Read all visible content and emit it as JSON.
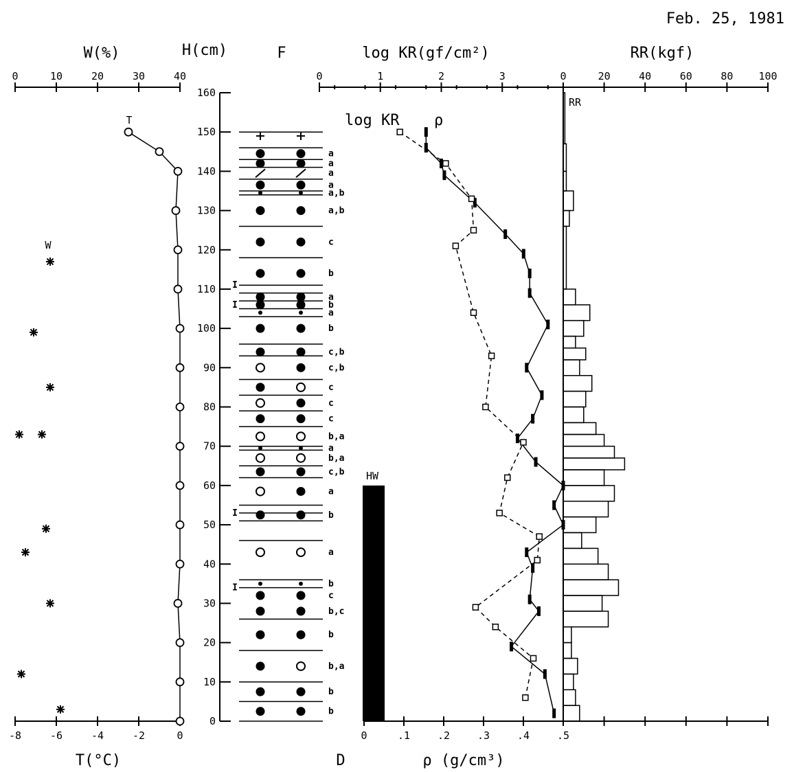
{
  "date": "Feb. 25, 1981",
  "labels": {
    "w_axis": "W(%)",
    "h_axis": "H(cm)",
    "f_column": "F",
    "kr_axis": "log KR(gf/cm²)",
    "rr_axis": "RR(kgf)",
    "t_axis": "T(°C)",
    "d_axis": "D",
    "rho_axis": "ρ (g/cm³)",
    "hw_label": "HW",
    "kr_series": "log KR",
    "rho_series": "ρ",
    "rr_series": "RR",
    "t_series": "T",
    "w_series": "W"
  },
  "chart_data": {
    "type": "snow-pit-profile",
    "height_axis": {
      "label": "H(cm)",
      "range": [
        0,
        160
      ],
      "ticks": [
        0,
        10,
        20,
        30,
        40,
        50,
        60,
        70,
        80,
        90,
        100,
        110,
        120,
        130,
        140,
        150,
        160
      ]
    },
    "w_axis": {
      "label": "W(%)",
      "range": [
        0,
        40
      ],
      "ticks": [
        0,
        10,
        20,
        30,
        40
      ]
    },
    "t_axis": {
      "label": "T(°C)",
      "range": [
        -8,
        0
      ],
      "ticks": [
        -8,
        -6,
        -4,
        -2,
        0
      ]
    },
    "kr_axis": {
      "label": "log KR(gf/cm²)",
      "range": [
        0,
        4
      ],
      "ticks": [
        0,
        1,
        2,
        3
      ]
    },
    "rho_axis": {
      "label": "ρ (g/cm³)",
      "range": [
        0,
        0.5
      ],
      "ticks": [
        "0",
        ".1",
        ".2",
        ".3",
        ".4",
        ".5"
      ]
    },
    "rr_axis": {
      "label": "RR(kgf)",
      "range": [
        0,
        100
      ],
      "ticks": [
        0,
        20,
        40,
        60,
        80,
        100
      ]
    },
    "temperature": [
      {
        "h": 150,
        "t": -2.5
      },
      {
        "h": 145,
        "t": -1.0
      },
      {
        "h": 140,
        "t": -0.1
      },
      {
        "h": 130,
        "t": -0.2
      },
      {
        "h": 120,
        "t": -0.1
      },
      {
        "h": 110,
        "t": -0.1
      },
      {
        "h": 100,
        "t": 0
      },
      {
        "h": 90,
        "t": 0
      },
      {
        "h": 80,
        "t": 0
      },
      {
        "h": 70,
        "t": 0
      },
      {
        "h": 60,
        "t": 0
      },
      {
        "h": 50,
        "t": 0
      },
      {
        "h": 40,
        "t": 0
      },
      {
        "h": 30,
        "t": -0.1
      },
      {
        "h": 20,
        "t": 0
      },
      {
        "h": 10,
        "t": 0
      },
      {
        "h": 0,
        "t": 0
      }
    ],
    "water_content": [
      {
        "h": 117,
        "w": 8.5
      },
      {
        "h": 99,
        "w": 4.5
      },
      {
        "h": 85,
        "w": 8.5
      },
      {
        "h": 73,
        "w": 1
      },
      {
        "h": 73,
        "w": 6.5
      },
      {
        "h": 49,
        "w": 7.5
      },
      {
        "h": 43,
        "w": 2.5
      },
      {
        "h": 30,
        "w": 8.5
      },
      {
        "h": 12,
        "w": 1.5
      },
      {
        "h": 3,
        "w": 11
      }
    ],
    "log_kr": [
      {
        "h": 150,
        "v": 1.75
      },
      {
        "h": 146,
        "v": 1.75
      },
      {
        "h": 142,
        "v": 2.0
      },
      {
        "h": 139,
        "v": 2.05
      },
      {
        "h": 132,
        "v": 2.55
      },
      {
        "h": 124,
        "v": 3.05
      },
      {
        "h": 119,
        "v": 3.35
      },
      {
        "h": 114,
        "v": 3.45
      },
      {
        "h": 109,
        "v": 3.45
      },
      {
        "h": 101,
        "v": 3.75
      },
      {
        "h": 90,
        "v": 3.4
      },
      {
        "h": 83,
        "v": 3.65
      },
      {
        "h": 77,
        "v": 3.5
      },
      {
        "h": 72,
        "v": 3.25
      },
      {
        "h": 66,
        "v": 3.55
      },
      {
        "h": 60,
        "v": 4.0
      },
      {
        "h": 55,
        "v": 3.85
      },
      {
        "h": 50,
        "v": 4.0
      },
      {
        "h": 43,
        "v": 3.4
      },
      {
        "h": 39,
        "v": 3.5
      },
      {
        "h": 31,
        "v": 3.45
      },
      {
        "h": 28,
        "v": 3.6
      },
      {
        "h": 19,
        "v": 3.15
      },
      {
        "h": 12,
        "v": 3.7
      },
      {
        "h": 2,
        "v": 3.85
      }
    ],
    "density": [
      {
        "h": 150,
        "v": 0.09
      },
      {
        "h": 142,
        "v": 0.205
      },
      {
        "h": 133,
        "v": 0.27
      },
      {
        "h": 125,
        "v": 0.275
      },
      {
        "h": 121,
        "v": 0.23
      },
      {
        "h": 104,
        "v": 0.275
      },
      {
        "h": 93,
        "v": 0.32
      },
      {
        "h": 80,
        "v": 0.305
      },
      {
        "h": 71,
        "v": 0.4
      },
      {
        "h": 62,
        "v": 0.36
      },
      {
        "h": 53,
        "v": 0.34
      },
      {
        "h": 47,
        "v": 0.44
      },
      {
        "h": 41,
        "v": 0.435
      },
      {
        "h": 29,
        "v": 0.28
      },
      {
        "h": 24,
        "v": 0.33
      },
      {
        "h": 16,
        "v": 0.425
      },
      {
        "h": 6,
        "v": 0.405
      }
    ],
    "rr": [
      {
        "h0": 147,
        "h1": 160,
        "v": 0.8
      },
      {
        "h0": 140,
        "h1": 147,
        "v": 1.5
      },
      {
        "h0": 135,
        "h1": 140,
        "v": 1.5
      },
      {
        "h0": 130,
        "h1": 135,
        "v": 5
      },
      {
        "h0": 126,
        "h1": 130,
        "v": 3
      },
      {
        "h0": 110,
        "h1": 126,
        "v": 1.5
      },
      {
        "h0": 106,
        "h1": 110,
        "v": 6
      },
      {
        "h0": 102,
        "h1": 106,
        "v": 13
      },
      {
        "h0": 98,
        "h1": 102,
        "v": 10
      },
      {
        "h0": 95,
        "h1": 98,
        "v": 6
      },
      {
        "h0": 92,
        "h1": 95,
        "v": 11
      },
      {
        "h0": 88,
        "h1": 92,
        "v": 8
      },
      {
        "h0": 84,
        "h1": 88,
        "v": 14
      },
      {
        "h0": 80,
        "h1": 84,
        "v": 11
      },
      {
        "h0": 76,
        "h1": 80,
        "v": 10
      },
      {
        "h0": 73,
        "h1": 76,
        "v": 16
      },
      {
        "h0": 70,
        "h1": 73,
        "v": 20
      },
      {
        "h0": 67,
        "h1": 70,
        "v": 25
      },
      {
        "h0": 64,
        "h1": 67,
        "v": 30
      },
      {
        "h0": 60,
        "h1": 64,
        "v": 20
      },
      {
        "h0": 56,
        "h1": 60,
        "v": 25
      },
      {
        "h0": 52,
        "h1": 56,
        "v": 22
      },
      {
        "h0": 48,
        "h1": 52,
        "v": 16
      },
      {
        "h0": 44,
        "h1": 48,
        "v": 9
      },
      {
        "h0": 40,
        "h1": 44,
        "v": 17
      },
      {
        "h0": 36,
        "h1": 40,
        "v": 22
      },
      {
        "h0": 32,
        "h1": 36,
        "v": 27
      },
      {
        "h0": 28,
        "h1": 32,
        "v": 19
      },
      {
        "h0": 24,
        "h1": 28,
        "v": 22
      },
      {
        "h0": 20,
        "h1": 24,
        "v": 4
      },
      {
        "h0": 16,
        "h1": 20,
        "v": 4
      },
      {
        "h0": 12,
        "h1": 16,
        "v": 7
      },
      {
        "h0": 8,
        "h1": 12,
        "v": 5
      },
      {
        "h0": 4,
        "h1": 8,
        "v": 6
      },
      {
        "h0": 0,
        "h1": 4,
        "v": 8
      }
    ],
    "hard_water": {
      "label": "HW",
      "h0": 0,
      "h1": 60
    },
    "layer_boundaries": [
      150,
      146,
      143,
      141,
      138,
      135,
      134,
      126,
      118,
      111,
      109,
      107,
      105,
      103,
      96,
      93,
      87,
      83,
      79,
      75,
      70,
      69,
      65,
      62,
      55,
      53,
      51,
      46,
      36,
      34,
      26,
      18,
      10,
      5,
      0
    ],
    "grain_symbols": [
      {
        "h": 149,
        "l": "plus",
        "r": "plus",
        "code": ""
      },
      {
        "h": 144.5,
        "l": "filled",
        "r": "filled",
        "code": "a"
      },
      {
        "h": 142,
        "l": "filled",
        "r": "filled",
        "code": "a"
      },
      {
        "h": 139.5,
        "l": "slash",
        "r": "slash",
        "code": "a"
      },
      {
        "h": 136.5,
        "l": "filled",
        "r": "filled",
        "code": "a"
      },
      {
        "h": 134.5,
        "l": "filled-small",
        "r": "filled-small",
        "code": "a,b"
      },
      {
        "h": 130,
        "l": "filled",
        "r": "filled",
        "code": "a,b"
      },
      {
        "h": 122,
        "l": "filled",
        "r": "filled",
        "code": "c"
      },
      {
        "h": 114,
        "l": "filled",
        "r": "filled",
        "code": "b"
      },
      {
        "h": 108,
        "l": "filled",
        "r": "filled",
        "code": "a"
      },
      {
        "h": 106,
        "l": "filled",
        "r": "filled",
        "code": "b"
      },
      {
        "h": 104,
        "l": "filled-small",
        "r": "filled-small",
        "code": "a"
      },
      {
        "h": 100,
        "l": "filled",
        "r": "filled",
        "code": "b"
      },
      {
        "h": 94,
        "l": "filled",
        "r": "filled",
        "code": "c,b"
      },
      {
        "h": 90,
        "l": "open",
        "r": "filled",
        "code": "c,b"
      },
      {
        "h": 85,
        "l": "filled",
        "r": "open",
        "code": "c"
      },
      {
        "h": 81,
        "l": "open",
        "r": "filled",
        "code": "c"
      },
      {
        "h": 77,
        "l": "filled",
        "r": "filled",
        "code": "c"
      },
      {
        "h": 72.5,
        "l": "open",
        "r": "open",
        "code": "b,a"
      },
      {
        "h": 69.5,
        "l": "filled-small",
        "r": "filled-small",
        "code": "a"
      },
      {
        "h": 67,
        "l": "open",
        "r": "open",
        "code": "b,a"
      },
      {
        "h": 63.5,
        "l": "filled",
        "r": "filled",
        "code": "c,b"
      },
      {
        "h": 58.5,
        "l": "open",
        "r": "filled",
        "code": "a"
      },
      {
        "h": 52.5,
        "l": "filled",
        "r": "filled",
        "code": "b"
      },
      {
        "h": 43,
        "l": "open",
        "r": "open",
        "code": "a"
      },
      {
        "h": 35,
        "l": "filled-small",
        "r": "filled-small",
        "code": "b"
      },
      {
        "h": 32,
        "l": "filled",
        "r": "filled",
        "code": "c"
      },
      {
        "h": 28,
        "l": "filled",
        "r": "filled",
        "code": "b,c"
      },
      {
        "h": 22,
        "l": "filled",
        "r": "filled",
        "code": "b"
      },
      {
        "h": 14,
        "l": "filled",
        "r": "open",
        "code": "b,a"
      },
      {
        "h": 7.5,
        "l": "filled",
        "r": "filled",
        "code": "b"
      },
      {
        "h": 2.5,
        "l": "filled",
        "r": "filled",
        "code": "b"
      }
    ],
    "ice_markers": [
      111,
      106,
      53,
      34
    ]
  }
}
